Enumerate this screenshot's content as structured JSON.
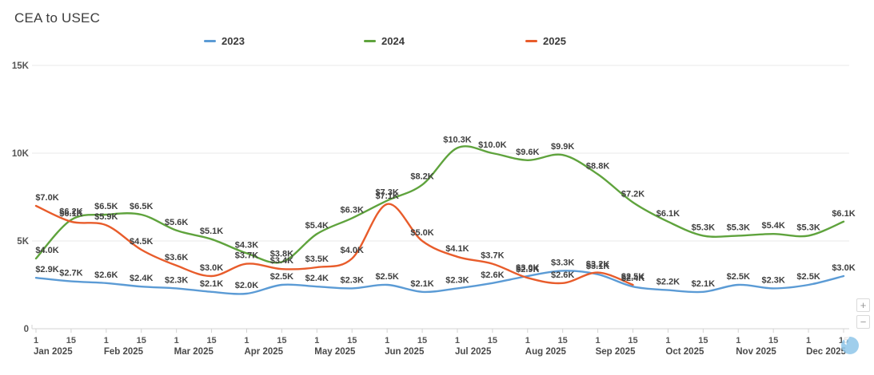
{
  "title": "CEA to USEC",
  "legend": [
    {
      "label": "2023",
      "color": "#5b9bd5"
    },
    {
      "label": "2024",
      "color": "#5fa33d"
    },
    {
      "label": "2025",
      "color": "#e85c2b"
    }
  ],
  "axes": {
    "y_ticks": [
      {
        "label": "0",
        "value": 0
      },
      {
        "label": "5K",
        "value": 5
      },
      {
        "label": "10K",
        "value": 10
      },
      {
        "label": "15K",
        "value": 15
      }
    ],
    "day_ticks": [
      "1",
      "15"
    ],
    "months": [
      "Jan 2025",
      "Feb 2025",
      "Mar 2025",
      "Apr 2025",
      "May 2025",
      "Jun 2025",
      "Jul 2025",
      "Aug 2025",
      "Sep 2025",
      "Oct 2025",
      "Nov 2025",
      "Dec 2025"
    ]
  },
  "controls": {
    "zoom_in_label": "+",
    "zoom_out_label": "−",
    "filter_icon": "funnel-icon"
  },
  "colors": {
    "grid": "#e8e8e8",
    "axis": "#d3d3d3",
    "tick_text": "#555555",
    "data_label": "#3f3f3f"
  },
  "chart_data": {
    "type": "line",
    "title": "CEA to USEC",
    "unit": "USD thousands",
    "ylim": [
      0,
      15
    ],
    "grid": true,
    "legend_position": "top",
    "x": [
      "Jan 1",
      "Jan 15",
      "Feb 1",
      "Feb 15",
      "Mar 1",
      "Mar 15",
      "Apr 1",
      "Apr 15",
      "May 1",
      "May 15",
      "Jun 1",
      "Jun 15",
      "Jul 1",
      "Jul 15",
      "Aug 1",
      "Aug 15",
      "Sep 1",
      "Sep 15",
      "Oct 1",
      "Oct 15",
      "Nov 1",
      "Nov 15",
      "Dec 1",
      "Dec 15"
    ],
    "series": [
      {
        "name": "2023",
        "color": "#5b9bd5",
        "values_k": [
          2.9,
          2.7,
          2.6,
          2.4,
          2.3,
          2.1,
          2.0,
          2.5,
          2.4,
          2.3,
          2.5,
          2.1,
          2.3,
          2.6,
          3.0,
          3.3,
          3.1,
          2.4,
          2.2,
          2.1,
          2.5,
          2.3,
          2.5,
          3.0
        ],
        "labels": [
          "$2.9K",
          "$2.7K",
          "$2.6K",
          "$2.4K",
          "$2.3K",
          "$2.1K",
          "$2.0K",
          "$2.5K",
          "$2.4K",
          "$2.3K",
          "$2.5K",
          "$2.1K",
          "$2.3K",
          "$2.6K",
          "$3.0K",
          "$3.3K",
          "$3.1K",
          "$2.4K",
          "$2.2K",
          "$2.1K",
          "$2.5K",
          "$2.3K",
          "$2.5K",
          "$3.0K"
        ]
      },
      {
        "name": "2024",
        "color": "#5fa33d",
        "values_k": [
          4.0,
          6.2,
          6.5,
          6.5,
          5.6,
          5.1,
          4.3,
          3.8,
          5.4,
          6.3,
          7.3,
          8.2,
          10.3,
          10.0,
          9.6,
          9.9,
          8.8,
          7.2,
          6.1,
          5.3,
          5.3,
          5.4,
          5.3,
          6.1
        ],
        "labels": [
          "$4.0K",
          "$6.2K",
          "$6.5K",
          "$6.5K",
          "$5.6K",
          "$5.1K",
          "$4.3K",
          "$3.8K",
          "$5.4K",
          "$6.3K",
          "$7.3K",
          "$8.2K",
          "$10.3K",
          "$10.0K",
          "$9.6K",
          "$9.9K",
          "$8.8K",
          "$7.2K",
          "$6.1K",
          "$5.3K",
          "$5.3K",
          "$5.4K",
          "$5.3K",
          "$6.1K"
        ]
      },
      {
        "name": "2025",
        "color": "#e85c2b",
        "values_k": [
          7.0,
          6.1,
          5.9,
          4.5,
          3.6,
          3.0,
          3.7,
          3.4,
          3.5,
          4.0,
          7.1,
          5.0,
          4.1,
          3.7,
          2.9,
          2.6,
          3.2,
          2.5
        ],
        "labels": [
          "$7.0K",
          "$6.1K",
          "$5.9K",
          "$4.5K",
          "$3.6K",
          "$3.0K",
          "$3.7K",
          "$3.4K",
          "$3.5K",
          "$4.0K",
          "$7.1K",
          "$5.0K",
          "$4.1K",
          "$3.7K",
          "$2.9K",
          "$2.6K",
          "$3.2K",
          "$2.5K"
        ]
      }
    ]
  }
}
